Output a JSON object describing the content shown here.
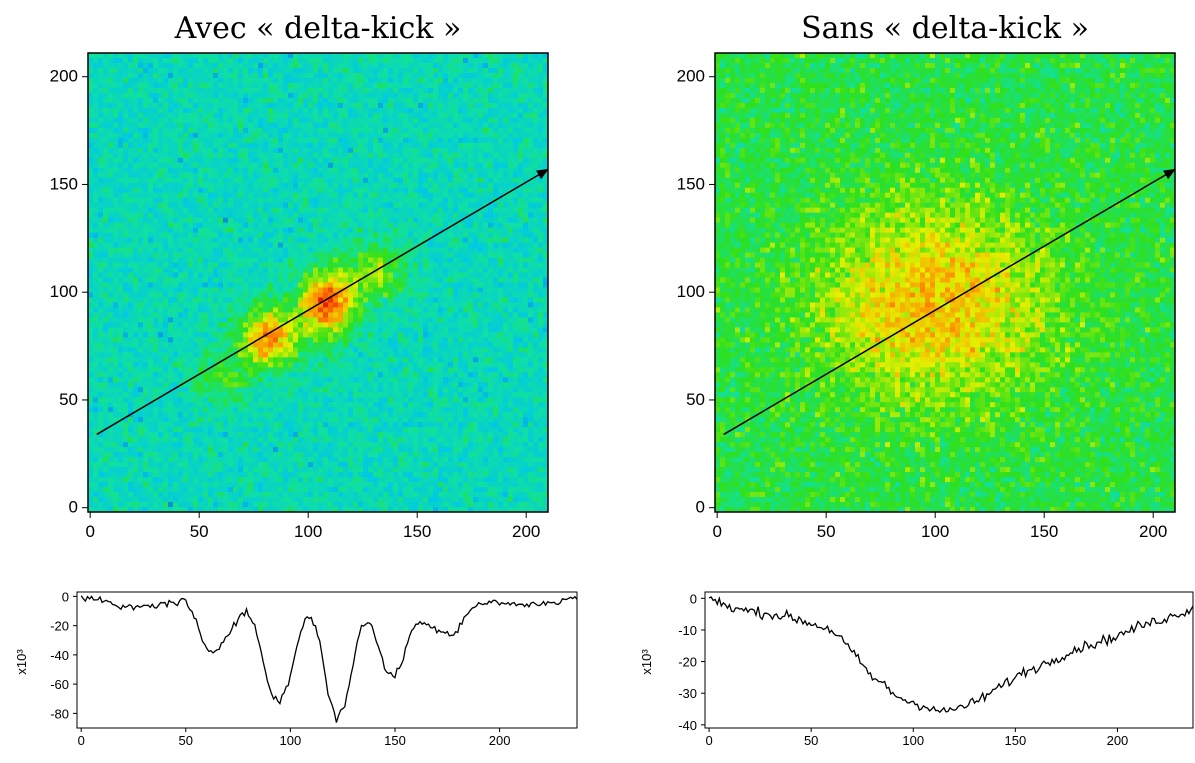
{
  "chart_data": [
    {
      "type": "heatmap",
      "panel": "left-top",
      "title": "Avec « delta-kick »",
      "xlim": [
        -1,
        210
      ],
      "ylim": [
        -2,
        211
      ],
      "xticks": [
        0,
        50,
        100,
        150,
        200
      ],
      "yticks": [
        0,
        50,
        100,
        150,
        200
      ],
      "colormap": [
        "#1a33d9",
        "#00c8e6",
        "#10e0a0",
        "#2fe01a",
        "#e6f000",
        "#ff8800",
        "#e81010"
      ],
      "background_level": 0.28,
      "noise": 0.12,
      "blobs": [
        {
          "x": 60,
          "y": 60,
          "sx": 9,
          "sy": 9,
          "amp": 0.22
        },
        {
          "x": 82,
          "y": 79,
          "sx": 10,
          "sy": 10,
          "amp": 0.55
        },
        {
          "x": 109,
          "y": 95,
          "sx": 9,
          "sy": 11,
          "amp": 0.65
        },
        {
          "x": 132,
          "y": 110,
          "sx": 10,
          "sy": 9,
          "amp": 0.3
        }
      ],
      "arrow": {
        "from": [
          3,
          34
        ],
        "to": [
          210,
          157
        ]
      }
    },
    {
      "type": "heatmap",
      "panel": "right-top",
      "title": "Sans « delta-kick »",
      "xlim": [
        -1,
        210
      ],
      "ylim": [
        -2,
        211
      ],
      "xticks": [
        0,
        50,
        100,
        150,
        200
      ],
      "yticks": [
        0,
        50,
        100,
        150,
        200
      ],
      "colormap": [
        "#1a33d9",
        "#00c8e6",
        "#10e0a0",
        "#2fe01a",
        "#e6f000",
        "#ff8800",
        "#e81010"
      ],
      "background_level": 0.45,
      "noise": 0.12,
      "blobs": [
        {
          "x": 100,
          "y": 95,
          "sx": 38,
          "sy": 32,
          "amp": 0.3
        }
      ],
      "arrow": {
        "from": [
          3,
          34
        ],
        "to": [
          210,
          157
        ]
      }
    },
    {
      "type": "line",
      "panel": "left-bottom",
      "ylabel": "x10³",
      "xlim": [
        -2,
        237
      ],
      "ylim": [
        -90,
        3
      ],
      "xticks": [
        0,
        50,
        100,
        150,
        200
      ],
      "yticks": [
        0,
        -20,
        -40,
        -60,
        -80
      ],
      "x": [
        0,
        10,
        20,
        30,
        40,
        45,
        50,
        55,
        58,
        62,
        66,
        70,
        75,
        79,
        83,
        87,
        91,
        95,
        100,
        104,
        107,
        110,
        114,
        118,
        122,
        126,
        130,
        134,
        138,
        142,
        146,
        150,
        154,
        158,
        162,
        166,
        170,
        174,
        178,
        184,
        190,
        200,
        210,
        220,
        230,
        237
      ],
      "y": [
        0,
        -3,
        -8,
        -7,
        -5,
        -4,
        -3,
        -18,
        -32,
        -38,
        -35,
        -25,
        -15,
        -10,
        -20,
        -45,
        -68,
        -72,
        -55,
        -28,
        -16,
        -14,
        -30,
        -65,
        -85,
        -75,
        -45,
        -20,
        -18,
        -33,
        -52,
        -55,
        -42,
        -22,
        -18,
        -20,
        -22,
        -24,
        -27,
        -12,
        -5,
        -4,
        -6,
        -5,
        -3,
        0
      ],
      "noise": 2.5
    },
    {
      "type": "line",
      "panel": "right-bottom",
      "ylabel": "x10³",
      "xlim": [
        -2,
        237
      ],
      "ylim": [
        -41,
        2
      ],
      "xticks": [
        0,
        50,
        100,
        150,
        200
      ],
      "yticks": [
        0,
        -10,
        -20,
        -30,
        -40
      ],
      "x": [
        0,
        10,
        20,
        30,
        40,
        50,
        60,
        65,
        70,
        75,
        80,
        85,
        90,
        95,
        100,
        105,
        110,
        115,
        120,
        125,
        130,
        135,
        140,
        145,
        150,
        155,
        160,
        170,
        180,
        190,
        200,
        210,
        220,
        230,
        237
      ],
      "y": [
        0,
        -3,
        -4,
        -5,
        -6,
        -8,
        -10,
        -13,
        -17,
        -21,
        -25,
        -27,
        -30,
        -32,
        -33,
        -34,
        -35,
        -36,
        -35,
        -34,
        -33,
        -31,
        -29,
        -27,
        -25,
        -23,
        -22,
        -19,
        -16,
        -14,
        -12,
        -9,
        -7,
        -5,
        -3
      ],
      "noise": 1.6
    }
  ]
}
